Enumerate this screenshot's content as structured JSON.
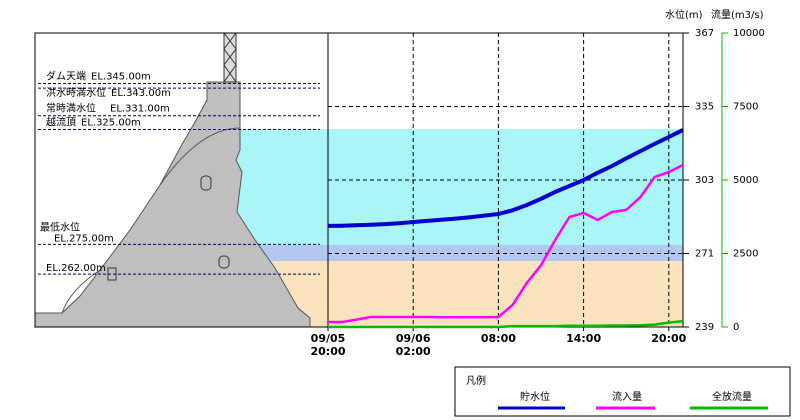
{
  "chart_data": {
    "type": "line",
    "y_label": "水位(m)",
    "y2_label": "流量(m3/s)",
    "x": [
      "09/05 20:00",
      "09/05 21:00",
      "09/05 22:00",
      "09/05 23:00",
      "09/06 00:00",
      "09/06 01:00",
      "09/06 02:00",
      "09/06 03:00",
      "09/06 04:00",
      "09/06 05:00",
      "09/06 06:00",
      "09/06 07:00",
      "09/06 08:00",
      "09/06 09:00",
      "09/06 10:00",
      "09/06 11:00",
      "09/06 12:00",
      "09/06 13:00",
      "09/06 14:00",
      "09/06 15:00",
      "09/06 16:00",
      "09/06 17:00",
      "09/06 18:00",
      "09/06 19:00",
      "09/06 20:00",
      "09/06 21:00"
    ],
    "xlim": [
      "09/05 20:00",
      "09/06 21:00"
    ],
    "xticks": [
      {
        "value": "09/05 20:00",
        "label": "09/05\n20:00"
      },
      {
        "value": "09/06 02:00",
        "label": "09/06\n02:00"
      },
      {
        "value": "09/06 08:00",
        "label": "08:00"
      },
      {
        "value": "09/06 14:00",
        "label": "14:00"
      },
      {
        "value": "09/06 20:00",
        "label": "20:00"
      }
    ],
    "ylim": [
      239,
      367
    ],
    "yticks": [
      239,
      271,
      303,
      335,
      367
    ],
    "y2lim": [
      0,
      10000
    ],
    "y2ticks": [
      0,
      2500,
      5000,
      7500,
      10000
    ],
    "grid": true,
    "series": [
      {
        "name": "貯水位",
        "color": "#0000cc",
        "values": [
          283.0,
          283.1,
          283.3,
          283.5,
          283.8,
          284.2,
          284.7,
          285.2,
          285.7,
          286.2,
          286.8,
          287.5,
          288.2,
          289.8,
          292.1,
          294.8,
          297.8,
          300.4,
          303.0,
          306.2,
          309.1,
          312.4,
          315.6,
          318.7,
          321.7,
          324.8
        ]
      },
      {
        "name": "流入量",
        "color": "#ff00ff",
        "axis": "y2",
        "values": [
          170,
          170,
          250,
          340,
          340,
          340,
          340,
          340,
          330,
          330,
          330,
          330,
          340,
          750,
          1500,
          2100,
          2960,
          3740,
          3880,
          3640,
          3910,
          3980,
          4420,
          5100,
          5270,
          5510
        ]
      },
      {
        "name": "全放流量",
        "color": "#00bb00",
        "axis": "y2",
        "values": [
          0,
          0,
          0,
          0,
          0,
          0,
          0,
          0,
          0,
          0,
          0,
          0,
          0,
          30,
          30,
          30,
          30,
          40,
          40,
          40,
          50,
          50,
          60,
          80,
          150,
          200
        ]
      }
    ],
    "legend_title": "凡例",
    "elevations": [
      {
        "name": "ダム天端",
        "label": "EL.345.00m",
        "value": 345
      },
      {
        "name": "洪水時満水位",
        "label": "EL.343.00m",
        "value": 343
      },
      {
        "name": "常時満水位",
        "label": "EL.331.00m",
        "value": 331
      },
      {
        "name": "越流頂",
        "label": "EL.325.00m",
        "value": 325
      },
      {
        "name": "最低水位",
        "label": "EL.275.00m",
        "value": 275
      },
      {
        "label": "EL.262.00m",
        "value": 262
      }
    ]
  }
}
